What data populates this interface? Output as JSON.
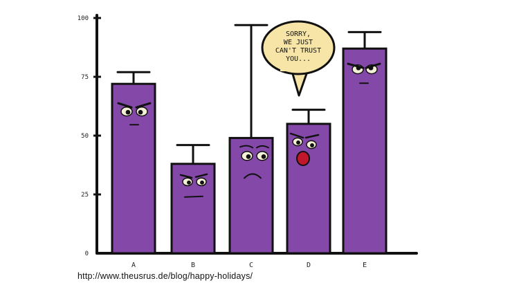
{
  "chart_data": {
    "type": "bar",
    "categories": [
      "A",
      "B",
      "C",
      "D",
      "E"
    ],
    "values": [
      72,
      38,
      49,
      55,
      87
    ],
    "error_upper": [
      77,
      46,
      97,
      61,
      94
    ],
    "ylim": [
      0,
      100
    ],
    "yticks": [
      0,
      25,
      50,
      75,
      100
    ],
    "ytick_labels": [
      "0",
      "25",
      "50",
      "75",
      "100"
    ],
    "title": "",
    "xlabel": "",
    "ylabel": "",
    "bar_color": "#8448a9",
    "grid": false,
    "annotation": {
      "category": "D",
      "lines": [
        "SORRY,",
        "WE JUST",
        "CAN'T TRUST",
        "YOU..."
      ],
      "fill": "#f7e5a8"
    }
  },
  "source_url": "http://www.theusrus.de/blog/happy-holidays/"
}
